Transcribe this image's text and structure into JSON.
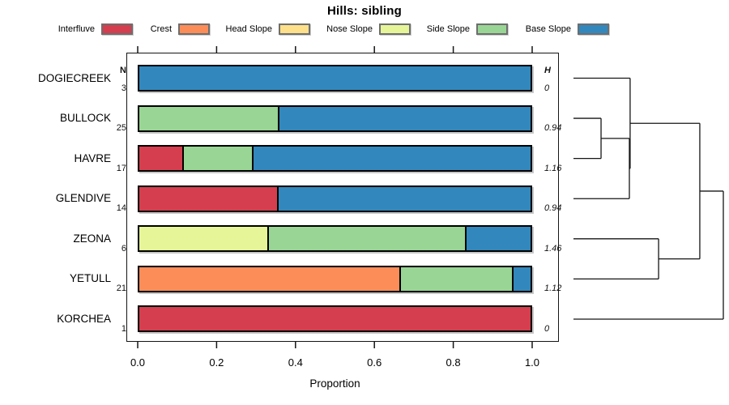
{
  "title": "Hills: sibling",
  "legend": [
    {
      "label": "Interfluve",
      "color": "#d53e4f"
    },
    {
      "label": "Crest",
      "color": "#fc8d59"
    },
    {
      "label": "Head Slope",
      "color": "#fee08b"
    },
    {
      "label": "Nose Slope",
      "color": "#e6f598"
    },
    {
      "label": "Side Slope",
      "color": "#99d594"
    },
    {
      "label": "Base Slope",
      "color": "#3288bd"
    }
  ],
  "columns": {
    "n_header": "N",
    "h_header": "H"
  },
  "x_axis": {
    "label": "Proportion",
    "ticks": [
      "0.0",
      "0.2",
      "0.4",
      "0.6",
      "0.8",
      "1.0"
    ],
    "range": [
      0,
      1
    ]
  },
  "chart_data": {
    "type": "bar",
    "orientation": "horizontal-stacked",
    "title": "Hills: sibling",
    "xlabel": "Proportion",
    "xlim": [
      0,
      1
    ],
    "categories": [
      "DOGIECREEK",
      "BULLOCK",
      "HAVRE",
      "GLENDIVE",
      "ZEONA",
      "YETULL",
      "KORCHEA"
    ],
    "rows": [
      {
        "name": "DOGIECREEK",
        "n": 3,
        "h": "0",
        "segments": [
          {
            "class": "Base Slope",
            "value": 1.0
          }
        ]
      },
      {
        "name": "BULLOCK",
        "n": 25,
        "h": "0.94",
        "segments": [
          {
            "class": "Side Slope",
            "value": 0.36
          },
          {
            "class": "Base Slope",
            "value": 0.64
          }
        ]
      },
      {
        "name": "HAVRE",
        "n": 17,
        "h": "1.16",
        "segments": [
          {
            "class": "Interfluve",
            "value": 0.118
          },
          {
            "class": "Side Slope",
            "value": 0.176
          },
          {
            "class": "Base Slope",
            "value": 0.706
          }
        ]
      },
      {
        "name": "GLENDIVE",
        "n": 14,
        "h": "0.94",
        "segments": [
          {
            "class": "Interfluve",
            "value": 0.357
          },
          {
            "class": "Base Slope",
            "value": 0.643
          }
        ]
      },
      {
        "name": "ZEONA",
        "n": 6,
        "h": "1.46",
        "segments": [
          {
            "class": "Nose Slope",
            "value": 0.333
          },
          {
            "class": "Side Slope",
            "value": 0.5
          },
          {
            "class": "Base Slope",
            "value": 0.167
          }
        ]
      },
      {
        "name": "YETULL",
        "n": 21,
        "h": "1.12",
        "segments": [
          {
            "class": "Crest",
            "value": 0.667
          },
          {
            "class": "Side Slope",
            "value": 0.286
          },
          {
            "class": "Base Slope",
            "value": 0.048
          }
        ]
      },
      {
        "name": "KORCHEA",
        "n": 1,
        "h": "0",
        "segments": [
          {
            "class": "Interfluve",
            "value": 1.0
          }
        ]
      }
    ]
  },
  "dendrogram": {
    "leaves": [
      "DOGIECREEK",
      "BULLOCK",
      "HAVRE",
      "GLENDIVE",
      "ZEONA",
      "YETULL",
      "KORCHEA"
    ],
    "merges": [
      {
        "a": "BULLOCK",
        "b": "HAVRE",
        "height": 0.184
      },
      {
        "a": "M0",
        "b": "GLENDIVE",
        "height": 0.373
      },
      {
        "a": "DOGIECREEK",
        "b": "M1",
        "height": 0.378
      },
      {
        "a": "ZEONA",
        "b": "YETULL",
        "height": 0.568
      },
      {
        "a": "M2",
        "b": "M3",
        "height": 0.843
      },
      {
        "a": "M4",
        "b": "KORCHEA",
        "height": 1.0
      }
    ]
  }
}
